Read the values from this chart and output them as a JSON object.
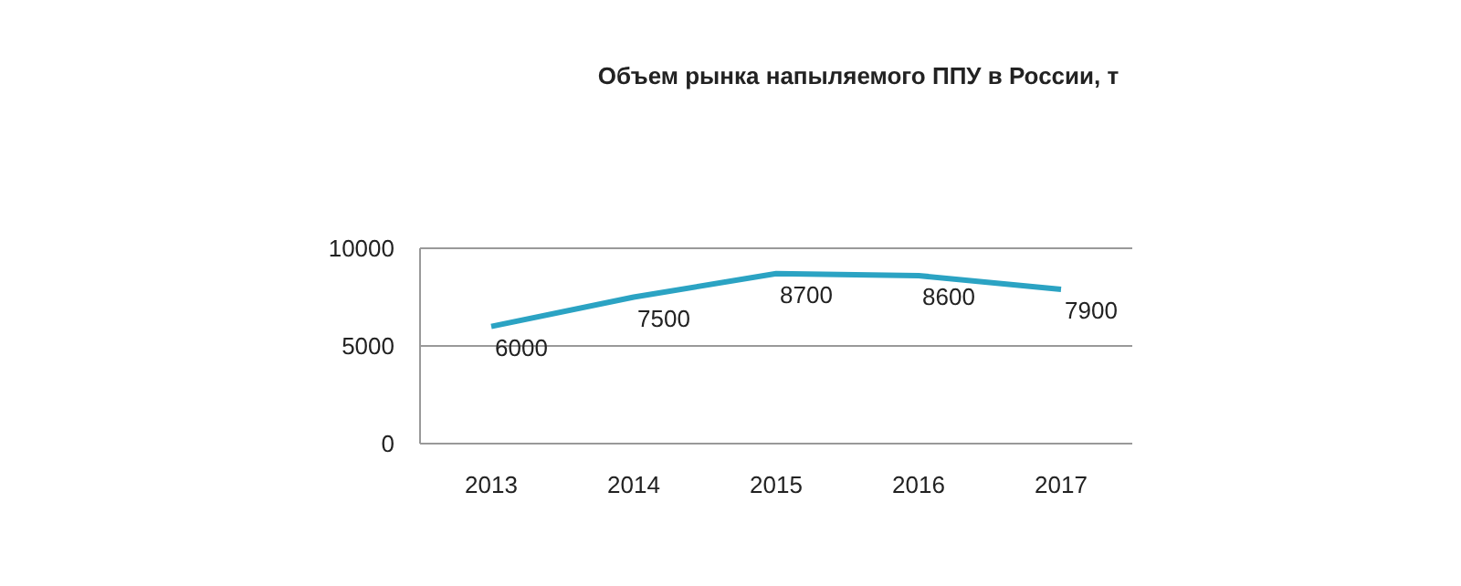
{
  "chart_data": {
    "type": "line",
    "title": "Объем рынка напыляемого ППУ в России, т",
    "categories": [
      "2013",
      "2014",
      "2015",
      "2016",
      "2017"
    ],
    "series": [
      {
        "color": "#2ba3c3",
        "values": [
          6000,
          7500,
          8700,
          8600,
          7900
        ]
      }
    ],
    "ylim": [
      0,
      10000
    ],
    "yticks": [
      0,
      5000,
      10000
    ],
    "grid": "y",
    "data_labels": true,
    "marker": "none"
  }
}
